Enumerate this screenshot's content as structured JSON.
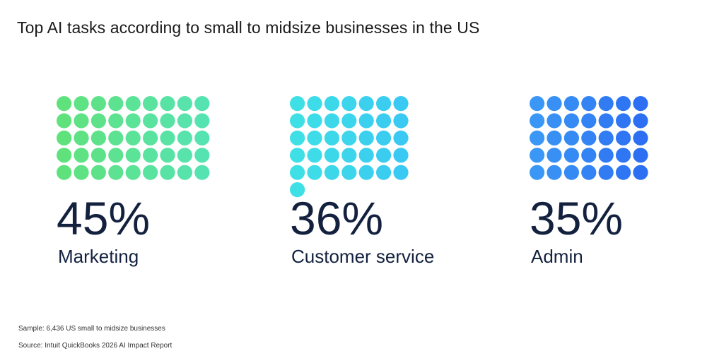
{
  "title": "Top AI tasks according to small to midsize businesses in the US",
  "chart_data": {
    "type": "waffle",
    "title": "Top AI tasks according to small to midsize businesses in the US",
    "categories": [
      "Marketing",
      "Customer service",
      "Admin"
    ],
    "values": [
      45,
      36,
      35
    ],
    "value_labels": [
      "45%",
      "36%",
      "35%"
    ],
    "units_per_dot": 1,
    "dots_per_row": [
      9,
      7,
      7
    ],
    "colors": [
      [
        "#5fe27c",
        "#56e3b2"
      ],
      [
        "#3ee0e6",
        "#39c9f2"
      ],
      [
        "#3a97f5",
        "#2c6ff2"
      ]
    ]
  },
  "footnotes": {
    "sample": "Sample: 6,436 US small to midsize businesses",
    "source": "Source: Intuit QuickBooks 2026 AI Impact Report"
  }
}
